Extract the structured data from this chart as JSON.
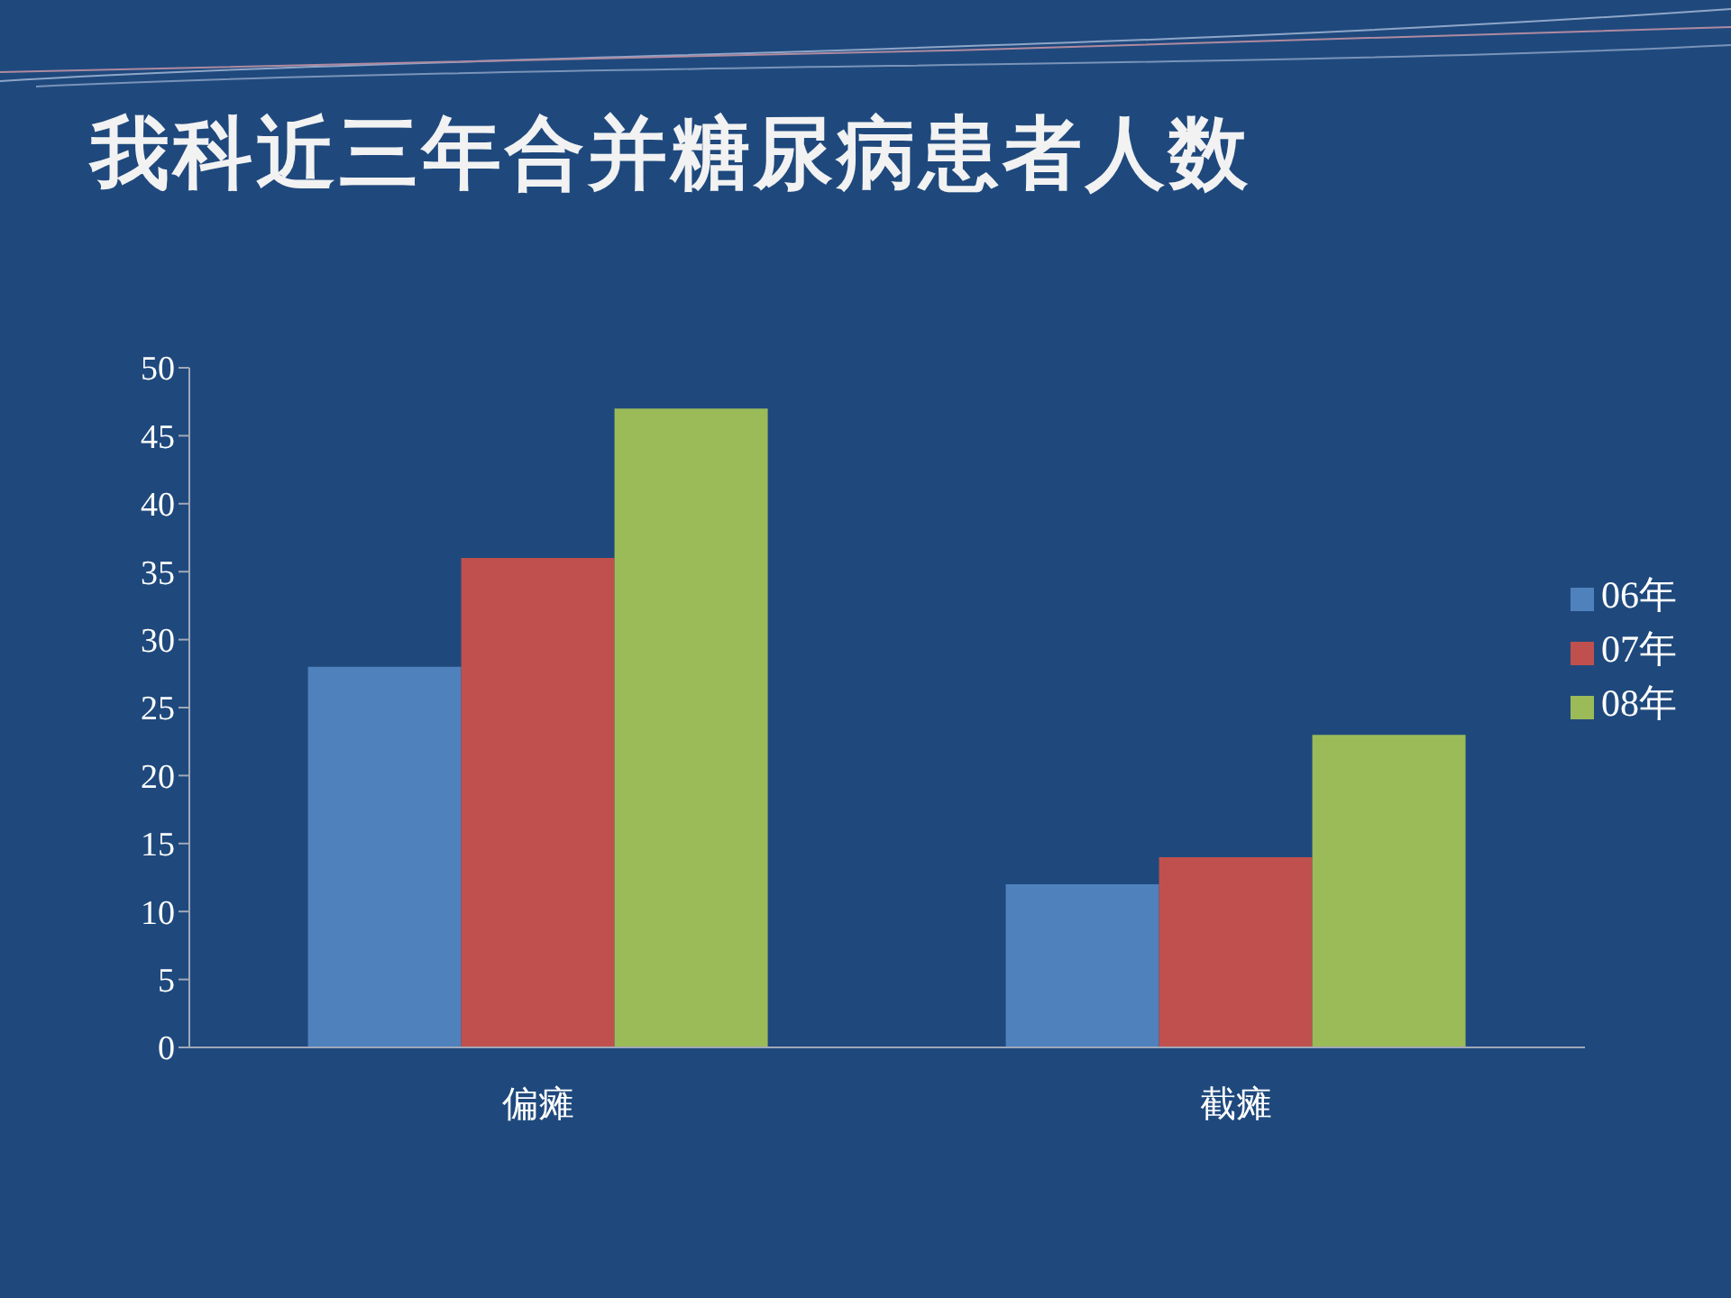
{
  "chart_data": {
    "type": "bar",
    "title": "我科近三年合并糖尿病患者人数",
    "categories": [
      "偏瘫",
      "截瘫"
    ],
    "series": [
      {
        "name": "06年",
        "color": "#4f81bd",
        "values": [
          28,
          12
        ]
      },
      {
        "name": "07年",
        "color": "#c0504d",
        "values": [
          36,
          14
        ]
      },
      {
        "name": "08年",
        "color": "#9bbb59",
        "values": [
          47,
          23
        ]
      }
    ],
    "ylim": [
      0,
      50
    ],
    "yticks": [
      0,
      5,
      10,
      15,
      20,
      25,
      30,
      35,
      40,
      45,
      50
    ],
    "grid": false,
    "legend": "right"
  }
}
